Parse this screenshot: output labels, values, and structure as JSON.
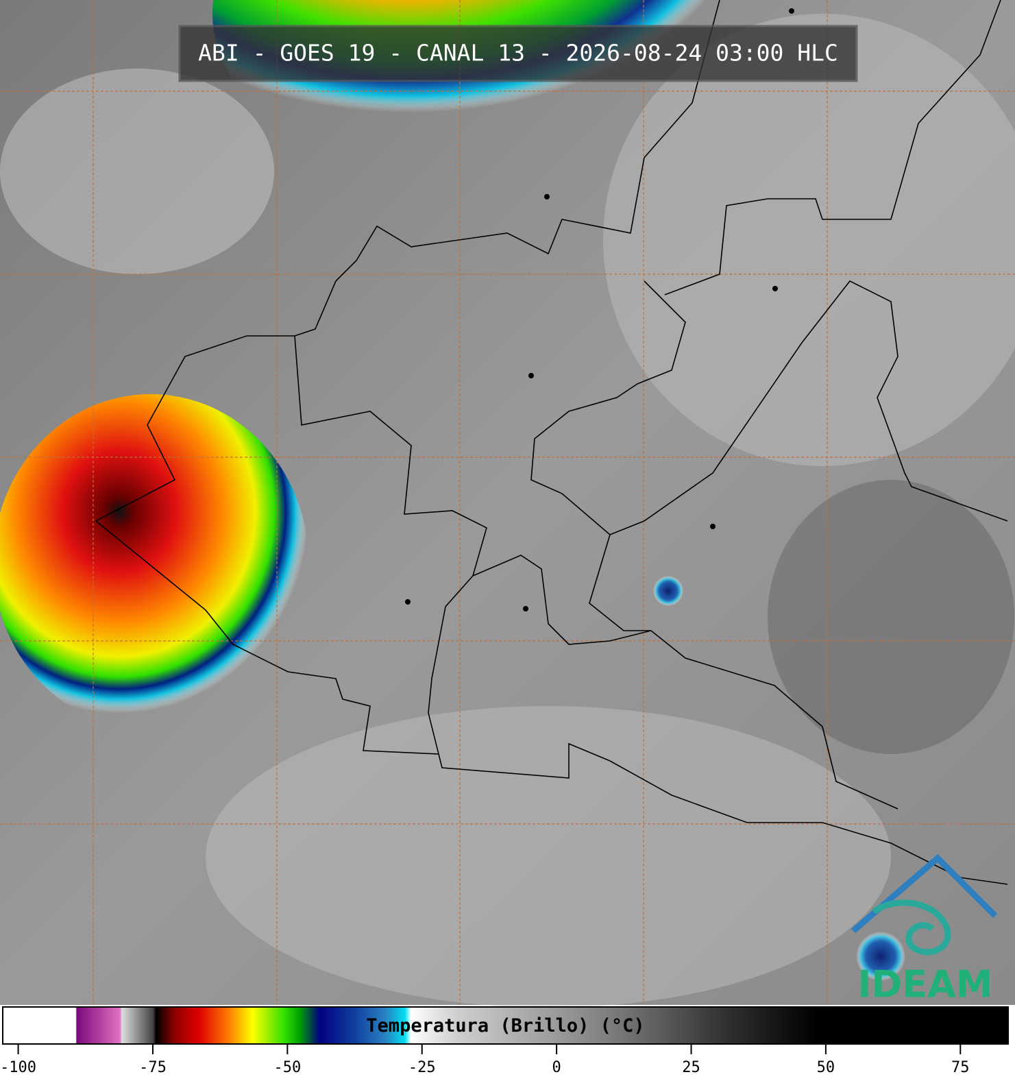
{
  "header": {
    "title": "ABI - GOES 19 - CANAL 13 - 2026-08-24 03:00 HLC"
  },
  "colorbar": {
    "label": "Temperatura (Brillo) (°C)",
    "lim": [
      -103,
      84
    ],
    "ticks": [
      -100,
      -75,
      -50,
      -25,
      0,
      25,
      50,
      75
    ]
  },
  "logo": {
    "text": "IDEAM"
  }
}
